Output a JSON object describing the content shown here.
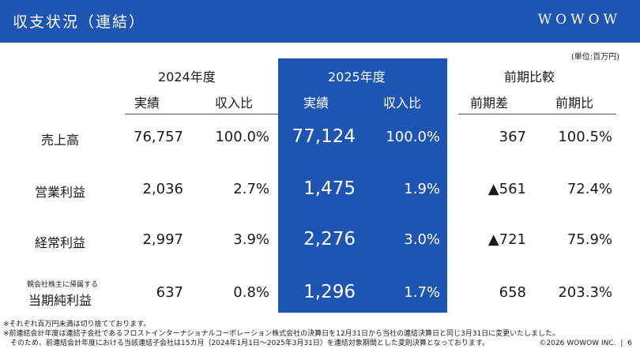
{
  "header": {
    "title": "収支状況（連結）",
    "logo": "WOWOW"
  },
  "unit_note": "(単位:百万円)",
  "table": {
    "group_headers": [
      "2024年度",
      "2025年度",
      "前期比較"
    ],
    "sub_headers": [
      "実績",
      "収入比",
      "実績",
      "収入比",
      "前期差",
      "前期比"
    ],
    "rows": [
      {
        "label": "売上高",
        "sublabel": "",
        "v2024": "76,757",
        "r2024": "100.0%",
        "v2025": "77,124",
        "r2025": "100.0%",
        "diff": "367",
        "ratio": "100.5%"
      },
      {
        "label": "営業利益",
        "sublabel": "",
        "v2024": "2,036",
        "r2024": "2.7%",
        "v2025": "1,475",
        "r2025": "1.9%",
        "diff": "▲561",
        "ratio": "72.4%"
      },
      {
        "label": "経常利益",
        "sublabel": "",
        "v2024": "2,997",
        "r2024": "3.9%",
        "v2025": "2,276",
        "r2025": "3.0%",
        "diff": "▲721",
        "ratio": "75.9%"
      },
      {
        "label": "当期純利益",
        "sublabel": "親会社株主に帰属する",
        "v2024": "637",
        "r2024": "0.8%",
        "v2025": "1,296",
        "r2025": "1.7%",
        "diff": "658",
        "ratio": "203.3%"
      }
    ]
  },
  "notes": [
    "※それぞれ百万円未満は切り捨てております。",
    "※前連結会計年度は連結子会社であるフロストインターナショナルコーポレーション株式会社の決算日を12月31日から当社の連結決算日と同じ3月31日に変更いたしました。",
    "　そのため、前連結会計年度における当該連結子会社は15カ月（2024年1月1日～2025年3月31日）を連結対象期間とした変則決算となっております。"
  ],
  "footer": {
    "copyright": "©2026 WOWOW INC.",
    "separator": "|",
    "page": "6"
  },
  "colors": {
    "brand": "#1e55b3",
    "text": "#1a1a1a",
    "bg": "#ffffff"
  }
}
